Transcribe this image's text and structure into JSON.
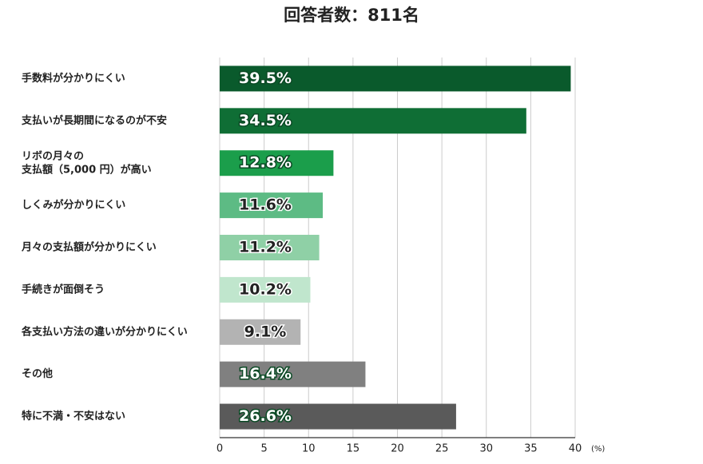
{
  "chart_data": {
    "type": "barh",
    "title": "回答者数：811名",
    "categories": [
      "手数料が分かりにくい",
      "支払いが長期間になるのが不安",
      "リボの月々の\n支払額（5,000 円）が高い",
      "しくみが分かりにくい",
      "月々の支払額が分かりにくい",
      "手続きが面倒そう",
      "各支払い方法の違いが分かりにくい",
      "その他",
      "特に不満・不安はない"
    ],
    "values": [
      39.5,
      34.5,
      12.8,
      11.6,
      11.2,
      10.2,
      9.1,
      16.4,
      26.6
    ],
    "value_labels": [
      "39.5%",
      "34.5%",
      "12.8%",
      "11.6%",
      "11.2%",
      "10.2%",
      "9.1%",
      "16.4%",
      "26.6%"
    ],
    "colors": [
      "#0a5a2c",
      "#0f6e35",
      "#1b9e4b",
      "#5dbb84",
      "#8fd0a6",
      "#c0e6cd",
      "#b3b3b3",
      "#808080",
      "#5a5a5a"
    ],
    "xlim": [
      0,
      40
    ],
    "xticks": [
      0,
      5,
      10,
      15,
      20,
      25,
      30,
      35,
      40
    ],
    "x_unit": "(%)",
    "grid": true
  }
}
